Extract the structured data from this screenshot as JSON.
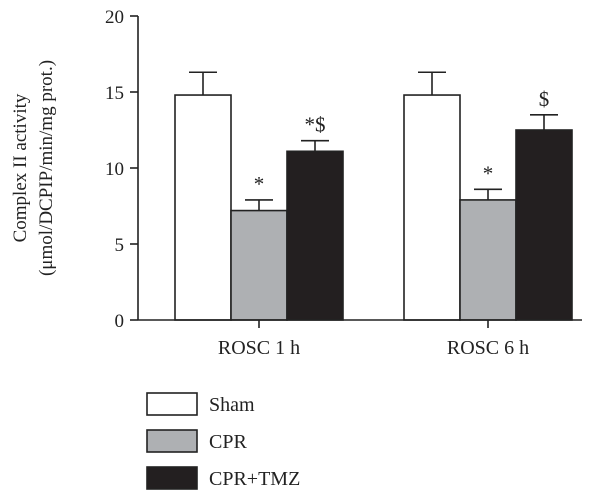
{
  "chart_data": {
    "type": "bar",
    "categories": [
      "ROSC 1 h",
      "ROSC 6 h"
    ],
    "series": [
      {
        "name": "Sham",
        "values": [
          14.8,
          14.8
        ],
        "errors": [
          1.5,
          1.5
        ],
        "color": "#ffffff"
      },
      {
        "name": "CPR",
        "values": [
          7.2,
          7.9
        ],
        "errors": [
          0.7,
          0.7
        ],
        "color": "#aeb0b3"
      },
      {
        "name": "CPR+TMZ",
        "values": [
          11.1,
          12.5
        ],
        "errors": [
          0.7,
          1.0
        ],
        "color": "#231f20"
      }
    ],
    "annotations": [
      [
        "",
        "*",
        "*$"
      ],
      [
        "",
        "*",
        "$"
      ]
    ],
    "ylabel_line1": "Complex II activity",
    "ylabel_line2": "(μmol/DCPIP/min/mg prot.)",
    "ylim": [
      0,
      20
    ],
    "yticks": [
      "0",
      "5",
      "10",
      "15",
      "20"
    ],
    "legend_position": "bottom-left",
    "grid": false
  }
}
